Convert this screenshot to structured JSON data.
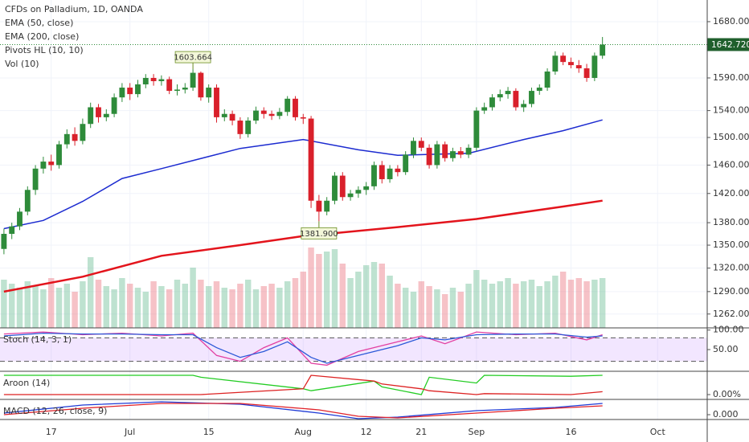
{
  "chart_data": [
    {
      "type": "candlestick",
      "title": "CFDs on Palladium, 1D, OANDA",
      "log": true,
      "grid": true,
      "ylim": [
        1245,
        1716
      ],
      "yticks": [
        {
          "value": 1680,
          "label": "1680.00"
        },
        {
          "value": 1590,
          "label": "1590.00"
        },
        {
          "value": 1540,
          "label": "1540.00"
        },
        {
          "value": 1500,
          "label": "1500.00"
        },
        {
          "value": 1460,
          "label": "1460.00"
        },
        {
          "value": 1420,
          "label": "1420.00"
        },
        {
          "value": 1380,
          "label": "1380.00"
        },
        {
          "value": 1350,
          "label": "1350.00"
        },
        {
          "value": 1320,
          "label": "1320.00"
        },
        {
          "value": 1290,
          "label": "1290.00"
        },
        {
          "value": 1262,
          "label": "1262.00"
        }
      ],
      "xlim": [
        -0.5,
        89.3
      ],
      "xticks": [
        {
          "value": 6,
          "label": "17"
        },
        {
          "value": 16,
          "label": "Jul"
        },
        {
          "value": 26,
          "label": "15"
        },
        {
          "value": 38,
          "label": "Aug"
        },
        {
          "value": 46,
          "label": "12"
        },
        {
          "value": 53,
          "label": "21"
        },
        {
          "value": 60,
          "label": "Sep"
        },
        {
          "value": 72,
          "label": "16"
        },
        {
          "value": 83,
          "label": "Oct"
        }
      ],
      "up_color": "#2e8b3a",
      "down_color": "#d9202b",
      "candles": [
        [
          1345,
          1372,
          1338,
          1365
        ],
        [
          1365,
          1380,
          1358,
          1375
        ],
        [
          1375,
          1400,
          1370,
          1395
        ],
        [
          1395,
          1430,
          1390,
          1425
        ],
        [
          1425,
          1460,
          1418,
          1455
        ],
        [
          1455,
          1472,
          1448,
          1465
        ],
        [
          1465,
          1475,
          1452,
          1460
        ],
        [
          1460,
          1495,
          1455,
          1490
        ],
        [
          1490,
          1512,
          1484,
          1505
        ],
        [
          1505,
          1515,
          1488,
          1495
        ],
        [
          1495,
          1528,
          1490,
          1520
        ],
        [
          1520,
          1552,
          1514,
          1545
        ],
        [
          1545,
          1550,
          1522,
          1530
        ],
        [
          1530,
          1542,
          1524,
          1535
        ],
        [
          1535,
          1566,
          1530,
          1560
        ],
        [
          1560,
          1582,
          1553,
          1575
        ],
        [
          1575,
          1582,
          1556,
          1565
        ],
        [
          1565,
          1587,
          1560,
          1580
        ],
        [
          1580,
          1596,
          1574,
          1590
        ],
        [
          1590,
          1596,
          1578,
          1585
        ],
        [
          1585,
          1594,
          1578,
          1588
        ],
        [
          1588,
          1592,
          1565,
          1570
        ],
        [
          1570,
          1580,
          1563,
          1572
        ],
        [
          1572,
          1582,
          1566,
          1575
        ],
        [
          1575,
          1603.664,
          1570,
          1598
        ],
        [
          1598,
          1600,
          1555,
          1560
        ],
        [
          1560,
          1580,
          1552,
          1575
        ],
        [
          1575,
          1580,
          1522,
          1530
        ],
        [
          1530,
          1542,
          1524,
          1535
        ],
        [
          1535,
          1540,
          1518,
          1525
        ],
        [
          1525,
          1530,
          1498,
          1505
        ],
        [
          1505,
          1530,
          1500,
          1525
        ],
        [
          1525,
          1546,
          1520,
          1540
        ],
        [
          1540,
          1545,
          1528,
          1535
        ],
        [
          1535,
          1540,
          1526,
          1532
        ],
        [
          1532,
          1544,
          1527,
          1538
        ],
        [
          1538,
          1562,
          1532,
          1558
        ],
        [
          1558,
          1562,
          1525,
          1530
        ],
        [
          1530,
          1535,
          1520,
          1528
        ],
        [
          1528,
          1532,
          1400,
          1410
        ],
        [
          1410,
          1418,
          1381.9,
          1395
        ],
        [
          1395,
          1415,
          1390,
          1410
        ],
        [
          1410,
          1450,
          1405,
          1445
        ],
        [
          1445,
          1450,
          1410,
          1415
        ],
        [
          1415,
          1425,
          1410,
          1420
        ],
        [
          1420,
          1430,
          1414,
          1425
        ],
        [
          1425,
          1436,
          1418,
          1430
        ],
        [
          1430,
          1465,
          1425,
          1460
        ],
        [
          1460,
          1466,
          1434,
          1440
        ],
        [
          1440,
          1460,
          1435,
          1455
        ],
        [
          1455,
          1460,
          1444,
          1450
        ],
        [
          1450,
          1480,
          1446,
          1475
        ],
        [
          1475,
          1500,
          1470,
          1495
        ],
        [
          1495,
          1500,
          1480,
          1485
        ],
        [
          1485,
          1490,
          1455,
          1460
        ],
        [
          1460,
          1495,
          1455,
          1490
        ],
        [
          1490,
          1494,
          1465,
          1470
        ],
        [
          1470,
          1485,
          1465,
          1480
        ],
        [
          1480,
          1486,
          1470,
          1475
        ],
        [
          1475,
          1490,
          1470,
          1485
        ],
        [
          1485,
          1545,
          1480,
          1540
        ],
        [
          1540,
          1552,
          1535,
          1545
        ],
        [
          1545,
          1565,
          1540,
          1560
        ],
        [
          1560,
          1572,
          1554,
          1565
        ],
        [
          1565,
          1576,
          1558,
          1570
        ],
        [
          1570,
          1574,
          1540,
          1545
        ],
        [
          1545,
          1556,
          1538,
          1550
        ],
        [
          1550,
          1575,
          1545,
          1570
        ],
        [
          1570,
          1580,
          1564,
          1575
        ],
        [
          1575,
          1605,
          1570,
          1600
        ],
        [
          1600,
          1632,
          1595,
          1625
        ],
        [
          1625,
          1630,
          1610,
          1615
        ],
        [
          1615,
          1622,
          1605,
          1610
        ],
        [
          1610,
          1618,
          1598,
          1605
        ],
        [
          1605,
          1612,
          1584,
          1590
        ],
        [
          1590,
          1630,
          1585,
          1625
        ],
        [
          1625,
          1655,
          1620,
          1642.72
        ]
      ],
      "series": [
        {
          "name": "EMA (50, close)",
          "color": "#1c2bd0",
          "width": 1.5,
          "x": [
            0,
            5,
            10,
            15,
            20,
            30,
            38,
            45,
            50,
            59,
            66,
            71,
            76
          ],
          "values": [
            1372,
            1383,
            1409,
            1441,
            1455,
            1484,
            1497,
            1482,
            1474,
            1477,
            1497,
            1510,
            1526
          ]
        },
        {
          "name": "EMA (200, close)",
          "color": "#e3141c",
          "width": 2.5,
          "x": [
            0,
            10,
            20,
            30,
            38,
            50,
            60,
            71,
            76
          ],
          "values": [
            1290,
            1309,
            1336,
            1350,
            1362,
            1374,
            1385,
            1402,
            1410
          ]
        }
      ],
      "pivots": {
        "name": "Pivots HL (10, 10)",
        "points": [
          {
            "x": 24,
            "value": 1603.664,
            "label": "1603.664"
          },
          {
            "x": 40,
            "value": 1381.9,
            "label": "1381.900"
          }
        ]
      },
      "volume": {
        "name": "Vol (10)",
        "up_color": "rgba(110,190,150,0.45)",
        "down_color": "rgba(235,120,130,0.45)",
        "values": [
          60,
          55,
          50,
          58,
          52,
          48,
          62,
          50,
          55,
          45,
          58,
          88,
          60,
          52,
          48,
          62,
          55,
          50,
          45,
          58,
          52,
          48,
          60,
          55,
          75,
          60,
          52,
          58,
          50,
          48,
          55,
          60,
          48,
          52,
          55,
          50,
          58,
          62,
          70,
          100,
          92,
          95,
          98,
          80,
          62,
          70,
          78,
          82,
          80,
          65,
          55,
          50,
          45,
          58,
          52,
          48,
          42,
          50,
          45,
          55,
          72,
          60,
          55,
          58,
          62,
          55,
          58,
          60,
          52,
          58,
          65,
          70,
          60,
          62,
          58,
          60,
          62
        ]
      },
      "last": {
        "value": 1642.72,
        "label": "1642.720",
        "color": "#1f5f2c"
      }
    },
    {
      "type": "line",
      "title": "Stoch (14, 3, 1)",
      "ylim": [
        -5.6,
        105.6
      ],
      "yticks": [
        {
          "value": 100,
          "label": "100.00"
        },
        {
          "value": 50,
          "label": "50.00"
        }
      ],
      "band": [
        20,
        80
      ],
      "band_color": "rgba(153,60,255,0.13)",
      "series": [
        {
          "color": "#e23fa1",
          "x": [
            0,
            5,
            10,
            15,
            20,
            24,
            27,
            30,
            33,
            36,
            39,
            41,
            45,
            50,
            53,
            56,
            60,
            65,
            70,
            74,
            76
          ],
          "values": [
            90,
            95,
            88,
            92,
            85,
            92,
            35,
            20,
            55,
            80,
            15,
            10,
            45,
            70,
            85,
            65,
            95,
            88,
            92,
            75,
            88
          ]
        },
        {
          "color": "#2c59d8",
          "x": [
            0,
            5,
            10,
            15,
            20,
            24,
            27,
            30,
            33,
            36,
            39,
            41,
            45,
            50,
            53,
            56,
            60,
            65,
            70,
            74,
            76
          ],
          "values": [
            85,
            92,
            90,
            90,
            88,
            88,
            55,
            30,
            45,
            70,
            30,
            15,
            35,
            60,
            80,
            75,
            88,
            90,
            90,
            82,
            85
          ]
        }
      ]
    },
    {
      "type": "line",
      "title": "Aroon (14)",
      "ylim": [
        -25,
        121
      ],
      "yticks": [
        {
          "value": 0,
          "label": "0.00%"
        }
      ],
      "series": [
        {
          "color": "#22cc22",
          "x": [
            0,
            12,
            24,
            25,
            38,
            39,
            47,
            48,
            53,
            54,
            60,
            61,
            72,
            76
          ],
          "values": [
            100,
            100,
            100,
            90,
            30,
            20,
            70,
            40,
            0,
            90,
            60,
            100,
            95,
            100
          ]
        },
        {
          "color": "#dd2222",
          "x": [
            0,
            12,
            24,
            25,
            38,
            39,
            47,
            48,
            53,
            54,
            60,
            61,
            72,
            76
          ],
          "values": [
            0,
            0,
            0,
            0,
            30,
            100,
            70,
            55,
            30,
            20,
            0,
            5,
            0,
            15
          ]
        }
      ]
    },
    {
      "type": "line",
      "title": "MACD (12, 26, close, 9)",
      "ylim": [
        -6,
        19
      ],
      "yticks": [
        {
          "value": 0,
          "label": "0.000"
        }
      ],
      "series": [
        {
          "color": "#1f3bd6",
          "x": [
            0,
            10,
            20,
            30,
            40,
            45,
            50,
            60,
            70,
            76
          ],
          "values": [
            2,
            12,
            16,
            13,
            2,
            -5,
            -3,
            5,
            9,
            14
          ]
        },
        {
          "color": "#e0222a",
          "x": [
            0,
            10,
            20,
            30,
            40,
            45,
            50,
            60,
            70,
            76
          ],
          "values": [
            0,
            8,
            14,
            14,
            6,
            -2,
            -4,
            2,
            8,
            11
          ]
        }
      ]
    }
  ]
}
